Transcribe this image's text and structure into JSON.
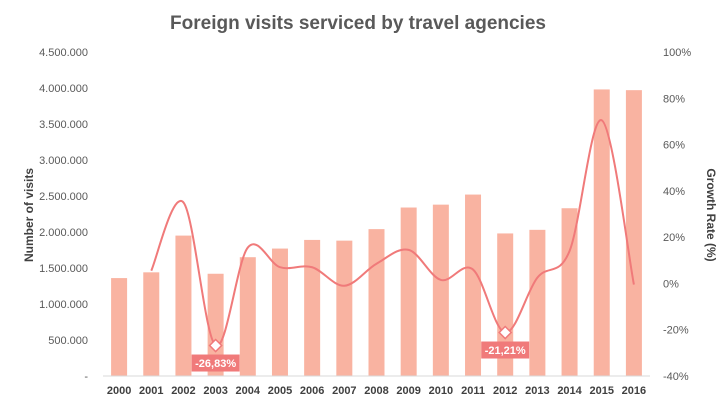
{
  "chart_data": {
    "type": "bar",
    "title": "Foreign visits serviced by travel agencies",
    "ylabel": "Number of visits",
    "y2label": "Growth Rate (%)",
    "categories": [
      "2000",
      "2001",
      "2002",
      "2003",
      "2004",
      "2005",
      "2006",
      "2007",
      "2008",
      "2009",
      "2010",
      "2011",
      "2012",
      "2013",
      "2014",
      "2015",
      "2016"
    ],
    "ylim": [
      0,
      4500000
    ],
    "y_ticks": [
      "-",
      "500.000",
      "1.000.000",
      "1.500.000",
      "2.000.000",
      "2.500.000",
      "3.000.000",
      "3.500.000",
      "4.000.000",
      "4.500.000"
    ],
    "y2lim": [
      -40,
      100
    ],
    "y2_ticks": [
      "-40%",
      "-20%",
      "0%",
      "20%",
      "40%",
      "60%",
      "80%",
      "100%"
    ],
    "series": [
      {
        "name": "Number of visits",
        "type": "bar",
        "color": "#f9b3a1",
        "values": [
          1360000,
          1440000,
          1950000,
          1420000,
          1650000,
          1770000,
          1890000,
          1880000,
          2040000,
          2340000,
          2380000,
          2520000,
          1980000,
          2030000,
          2330000,
          3980000,
          3970000
        ]
      },
      {
        "name": "Growth Rate (%)",
        "type": "line",
        "axis": "right",
        "color": "#f07a7a",
        "values": [
          null,
          5.5,
          35.0,
          -26.83,
          15.5,
          7.0,
          7.0,
          -1.0,
          8.5,
          14.5,
          1.5,
          6.0,
          -21.21,
          2.5,
          14.0,
          70.5,
          -0.5
        ]
      }
    ],
    "annotations": [
      {
        "category": "2003",
        "label": "-26,83%",
        "color": "#f07a7a"
      },
      {
        "category": "2012",
        "label": "-21,21%",
        "color": "#f07a7a"
      }
    ],
    "grid": false,
    "legend": "none"
  }
}
